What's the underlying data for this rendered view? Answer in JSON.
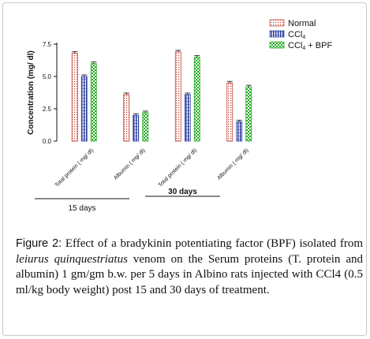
{
  "chart_data": {
    "type": "bar",
    "ylabel": "Concentration (mg/ dl)",
    "ylim": [
      0,
      7.5
    ],
    "yticks": [
      "0.0",
      "2.5",
      "5.0",
      "7.5"
    ],
    "categories": [
      "Total protein ( mg/ dl)",
      "Albumin ( mg/ dl)",
      "Total protein ( mg/ dl)",
      "Albumin ( mg/ dl)"
    ],
    "series": [
      {
        "name": "Normal",
        "values": [
          6.8,
          3.6,
          6.9,
          4.5
        ],
        "color": "#c0392b",
        "pattern": "dotted"
      },
      {
        "name": "CCl4",
        "values": [
          5.0,
          2.0,
          3.6,
          1.5
        ],
        "color": "#2c3e9e",
        "pattern": "vertical-stripes"
      },
      {
        "name": "CCl4 + BPF",
        "values": [
          6.0,
          2.2,
          6.5,
          4.2
        ],
        "color": "#1faa1f",
        "pattern": "checker"
      }
    ],
    "groups": [
      {
        "label": "15 days",
        "bold": false
      },
      {
        "label": "30 days",
        "bold": true
      }
    ],
    "legend_position": "top-right",
    "grid": false
  },
  "legend": {
    "normal": "Normal",
    "ccl4_base": "CCl",
    "ccl4_sub": "4",
    "bpf_base": "CCl",
    "bpf_sub": "4",
    "bpf_rest": " + BPF"
  },
  "caption": {
    "label": "Figure 2:",
    "text_1": " Effect of a bradykinin potentiating factor (BPF) isolated from ",
    "species": "leiurus quinquestriatus",
    "text_2": " venom on the Serum proteins (T. protein and albumin) 1 gm/gm b.w. per 5 days in Albino rats injected with CCl4 (0.5 ml/kg body weight) post 15 and 30 days of treatment."
  }
}
